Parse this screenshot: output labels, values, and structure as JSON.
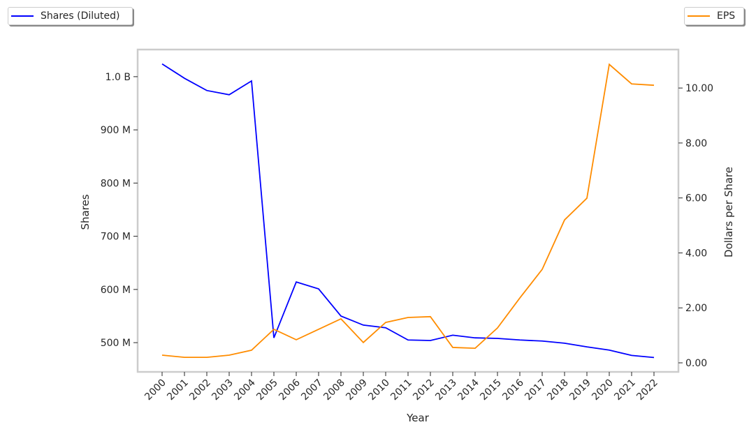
{
  "chart_data": {
    "type": "line",
    "xlabel": "Year",
    "ylabel_left": "Shares",
    "ylabel_right": "Dollars per Share",
    "x": [
      2000,
      2001,
      2002,
      2003,
      2004,
      2005,
      2006,
      2007,
      2008,
      2009,
      2010,
      2011,
      2012,
      2013,
      2014,
      2015,
      2016,
      2017,
      2018,
      2019,
      2020,
      2021,
      2022
    ],
    "ylim_left": [
      445000000,
      1051000000
    ],
    "ylim_right": [
      -0.33,
      11.4
    ],
    "left_ticks": [
      {
        "v": 500000000,
        "label": "500 M"
      },
      {
        "v": 600000000,
        "label": "600 M"
      },
      {
        "v": 700000000,
        "label": "700 M"
      },
      {
        "v": 800000000,
        "label": "800 M"
      },
      {
        "v": 900000000,
        "label": "900 M"
      },
      {
        "v": 1000000000,
        "label": "1.0 B"
      }
    ],
    "right_ticks": [
      {
        "v": 0,
        "label": "0.00"
      },
      {
        "v": 2,
        "label": "2.00"
      },
      {
        "v": 4,
        "label": "4.00"
      },
      {
        "v": 6,
        "label": "6.00"
      },
      {
        "v": 8,
        "label": "8.00"
      },
      {
        "v": 10,
        "label": "10.00"
      }
    ],
    "grid": false,
    "series": [
      {
        "name": "Shares (Diluted)",
        "axis": "left",
        "color": "#0000ff",
        "legend": "top-left",
        "values": [
          1024000000,
          997000000,
          974000000,
          966000000,
          992000000,
          509000000,
          614000000,
          601000000,
          550000000,
          533000000,
          528000000,
          505000000,
          504000000,
          514000000,
          509000000,
          508000000,
          505000000,
          503000000,
          499000000,
          492000000,
          486000000,
          476000000,
          472000000
        ]
      },
      {
        "name": "EPS",
        "axis": "right",
        "color": "#ff8c00",
        "legend": "top-right",
        "values": [
          0.28,
          0.2,
          0.2,
          0.28,
          0.46,
          1.22,
          0.84,
          1.22,
          1.6,
          0.74,
          1.47,
          1.65,
          1.68,
          0.56,
          0.53,
          1.27,
          2.36,
          3.4,
          5.2,
          5.99,
          10.86,
          10.15,
          10.1
        ]
      }
    ]
  }
}
